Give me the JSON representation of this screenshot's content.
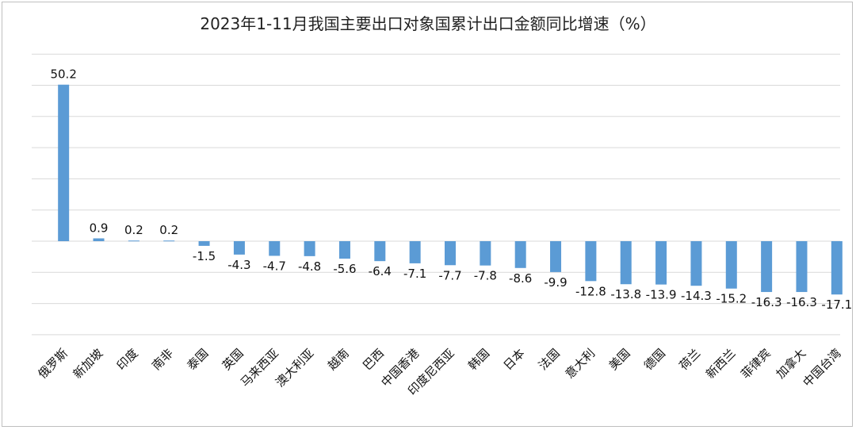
{
  "chart_data": {
    "type": "bar",
    "title": "2023年1-11月我国主要出口对象国累计出口金额同比增速（%）",
    "categories": [
      "俄罗斯",
      "新加坡",
      "印度",
      "南非",
      "泰国",
      "英国",
      "马来西亚",
      "澳大利亚",
      "越南",
      "巴西",
      "中国香港",
      "印度尼西亚",
      "韩国",
      "日本",
      "法国",
      "意大利",
      "美国",
      "德国",
      "荷兰",
      "新西兰",
      "菲律宾",
      "加拿大",
      "中国台湾"
    ],
    "values": [
      50.2,
      0.9,
      0.2,
      0.2,
      -1.5,
      -4.3,
      -4.7,
      -4.8,
      -5.6,
      -6.4,
      -7.1,
      -7.7,
      -7.8,
      -8.6,
      -9.9,
      -12.8,
      -13.8,
      -13.9,
      -14.3,
      -15.2,
      -16.3,
      -16.3,
      -17.1
    ],
    "labels": [
      "50.2",
      "0.9",
      "0.2",
      "0.2",
      "-1.5",
      "-4.3",
      "-4.7",
      "-4.8",
      "-5.6",
      "-6.4",
      "-7.1",
      "-7.7",
      "-7.8",
      "-8.6",
      "-9.9",
      "-12.8",
      "-13.8",
      "-13.9",
      "-14.3",
      "-15.2",
      "-16.3",
      "-16.3",
      "-17.1"
    ],
    "ylim": [
      -30,
      60
    ],
    "grid": true,
    "color": "#5b9bd5"
  }
}
